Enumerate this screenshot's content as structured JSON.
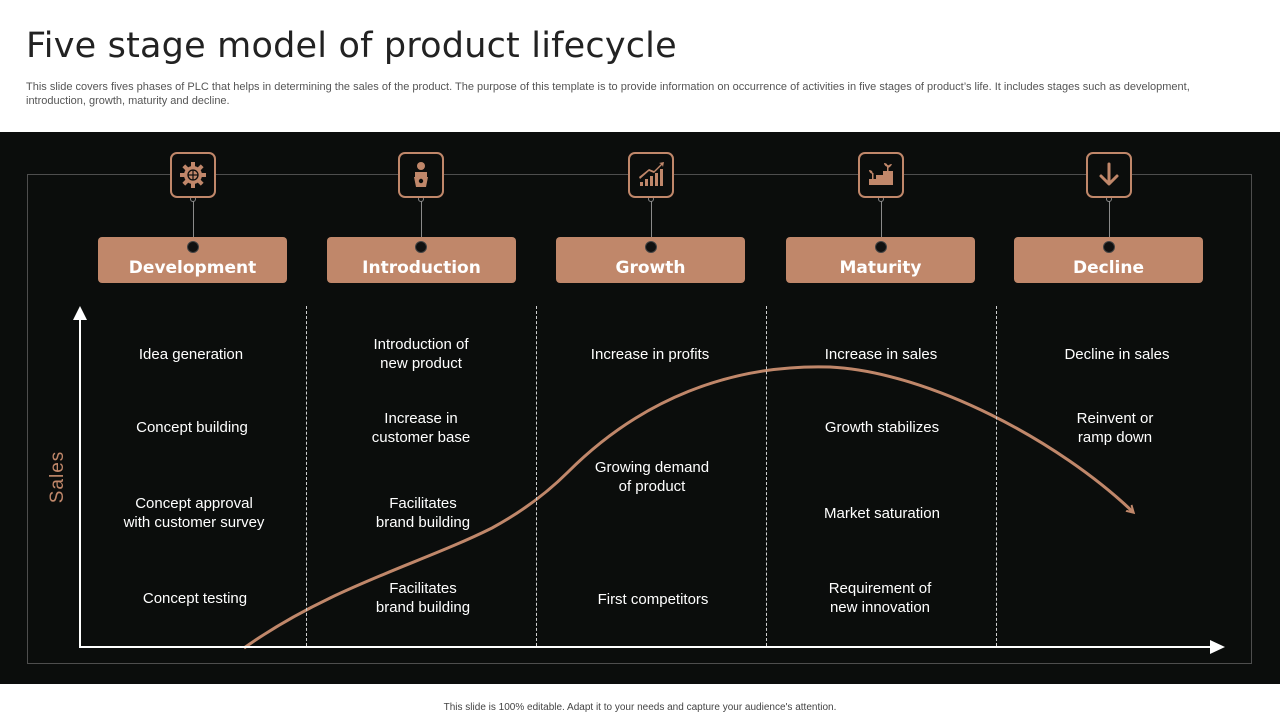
{
  "title": "Five stage model of product lifecycle",
  "subtitle": "This slide covers fives phases of PLC that helps in determining the sales of the product. The purpose of this template is to provide information on occurrence of activities in five stages of product’s life. It includes stages such as development, introduction, growth, maturity and decline.",
  "y_axis_label": "Sales",
  "footer": "This slide is 100% editable. Adapt it to your needs and capture your audience's attention.",
  "colors": {
    "accent": "#c0876a",
    "panel_background": "#0b0d0c",
    "text": "#ffffff"
  },
  "stages": [
    {
      "name": "Development",
      "icon": "gear-globe-icon",
      "items": [
        "Idea generation",
        "Concept building",
        "Concept approval\nwith customer survey",
        "Concept testing"
      ]
    },
    {
      "name": "Introduction",
      "icon": "presenter-icon",
      "items": [
        "Introduction  of\nnew product",
        "Increase  in\ncustomer base",
        "Facilitates\nbrand building",
        "Facilitates\nbrand building"
      ]
    },
    {
      "name": "Growth",
      "icon": "growth-chart-icon",
      "items": [
        "Increase  in profits",
        "Growing demand\nof product",
        "First competitors"
      ]
    },
    {
      "name": "Maturity",
      "icon": "plant-steps-icon",
      "items": [
        "Increase  in sales",
        "Growth stabilizes",
        "Market saturation",
        "Requirement of\nnew innovation"
      ]
    },
    {
      "name": "Decline",
      "icon": "down-arrow-icon",
      "items": [
        "Decline in sales",
        "Reinvent or\nramp down"
      ]
    }
  ]
}
